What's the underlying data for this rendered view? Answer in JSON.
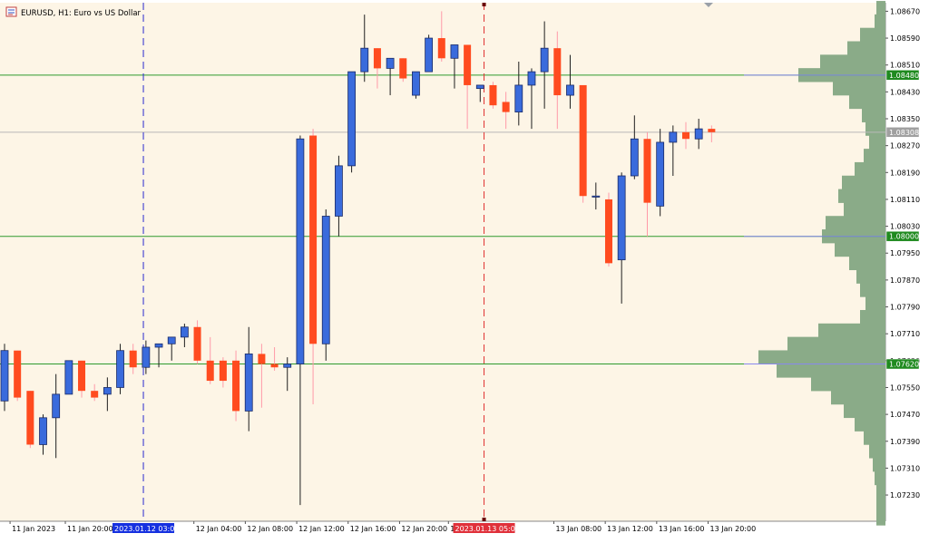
{
  "header": {
    "symbol": "EURUSD",
    "timeframe": "H1",
    "description": "Euro vs US Dollar",
    "title": "EURUSD, H1:  Euro vs US Dollar",
    "icon": "chart-window-icon"
  },
  "colors": {
    "background": "#fdf5e6",
    "bull_body": "#3a6bdc",
    "bear_body": "#ff4b1f",
    "wick_bull": "#1e1e1e",
    "wick_bear": "#ff9aa8",
    "volume_profile": "#8aab88",
    "level_line": "#2e9a2e",
    "current_price_line": "#b8b8b8",
    "vertical_blue": "#2b2bd0",
    "vertical_red": "#e03030",
    "label_green": "#1f8a1f",
    "label_gray": "#a0a0a0",
    "label_blue": "#1530e0",
    "label_red": "#e0303a"
  },
  "chart_data": {
    "type": "candlestick",
    "ylim": [
      1.0716,
      1.0869
    ],
    "price_ticks": [
      "1.08670",
      "1.08590",
      "1.08510",
      "1.08430",
      "1.08350",
      "1.08270",
      "1.08190",
      "1.08110",
      "1.08030",
      "1.07950",
      "1.07870",
      "1.07790",
      "1.07710",
      "1.07630",
      "1.07550",
      "1.07470",
      "1.07390",
      "1.07310",
      "1.07230"
    ],
    "price_tick_values": [
      1.0867,
      1.0859,
      1.0851,
      1.0843,
      1.0835,
      1.0827,
      1.0819,
      1.0811,
      1.0803,
      1.0795,
      1.0787,
      1.0779,
      1.0771,
      1.0763,
      1.0755,
      1.0747,
      1.0739,
      1.0731,
      1.0723
    ],
    "time_labels": [
      "11 Jan 2023",
      "11 Jan 20:00",
      "12 Jan 04:00",
      "12 Jan 08:00",
      "12 Jan 12:00",
      "12 Jan 16:00",
      "12 Jan 20:00",
      "13 Jan 00",
      "13 Jan 08:00",
      "13 Jan 12:00",
      "13 Jan 16:00",
      "13 Jan 20:00"
    ],
    "time_label_bars": [
      0.5,
      4.8,
      14.8,
      18.8,
      22.8,
      26.8,
      30.8,
      34.6,
      42.8,
      46.8,
      50.8,
      54.8
    ],
    "levels": [
      {
        "price": 1.0848,
        "label": "1.08480"
      },
      {
        "price": 1.08,
        "label": "1.08000"
      },
      {
        "price": 1.0762,
        "label": "1.07620"
      }
    ],
    "current_price": {
      "price": 1.0831,
      "label": "1.08308"
    },
    "vertical_markers": [
      {
        "bar": 10.8,
        "label": "2023.01.12 03:00",
        "style": "blue"
      },
      {
        "bar": 37.3,
        "label": "2023.01.13 05:00",
        "style": "red"
      }
    ],
    "candles": [
      {
        "o": 1.0751,
        "h": 1.0768,
        "l": 1.0748,
        "c": 1.0766
      },
      {
        "o": 1.0766,
        "h": 1.0766,
        "l": 1.0751,
        "c": 1.0752
      },
      {
        "o": 1.0754,
        "h": 1.0754,
        "l": 1.0737,
        "c": 1.0738
      },
      {
        "o": 1.0738,
        "h": 1.0747,
        "l": 1.0735,
        "c": 1.0746
      },
      {
        "o": 1.0746,
        "h": 1.0759,
        "l": 1.0734,
        "c": 1.0753
      },
      {
        "o": 1.0753,
        "h": 1.0763,
        "l": 1.0753,
        "c": 1.0763
      },
      {
        "o": 1.0763,
        "h": 1.0763,
        "l": 1.0752,
        "c": 1.0754
      },
      {
        "o": 1.0754,
        "h": 1.0756,
        "l": 1.0751,
        "c": 1.0752
      },
      {
        "o": 1.0753,
        "h": 1.0758,
        "l": 1.0748,
        "c": 1.0755
      },
      {
        "o": 1.0755,
        "h": 1.0768,
        "l": 1.0753,
        "c": 1.0766
      },
      {
        "o": 1.0766,
        "h": 1.0768,
        "l": 1.0759,
        "c": 1.0761
      },
      {
        "o": 1.0761,
        "h": 1.0769,
        "l": 1.0759,
        "c": 1.0767
      },
      {
        "o": 1.0767,
        "h": 1.0768,
        "l": 1.0761,
        "c": 1.0768
      },
      {
        "o": 1.0768,
        "h": 1.077,
        "l": 1.0763,
        "c": 1.077
      },
      {
        "o": 1.077,
        "h": 1.0774,
        "l": 1.0767,
        "c": 1.0773
      },
      {
        "o": 1.0773,
        "h": 1.0775,
        "l": 1.0762,
        "c": 1.0763
      },
      {
        "o": 1.0763,
        "h": 1.077,
        "l": 1.0756,
        "c": 1.0757
      },
      {
        "o": 1.0763,
        "h": 1.0764,
        "l": 1.0755,
        "c": 1.0757
      },
      {
        "o": 1.0763,
        "h": 1.0766,
        "l": 1.0745,
        "c": 1.0748
      },
      {
        "o": 1.0748,
        "h": 1.0773,
        "l": 1.0742,
        "c": 1.0765
      },
      {
        "o": 1.0765,
        "h": 1.0768,
        "l": 1.0749,
        "c": 1.0762
      },
      {
        "o": 1.0762,
        "h": 1.0767,
        "l": 1.076,
        "c": 1.0761
      },
      {
        "o": 1.0761,
        "h": 1.0764,
        "l": 1.0754,
        "c": 1.0762
      },
      {
        "o": 1.0762,
        "h": 1.083,
        "l": 1.072,
        "c": 1.0829
      },
      {
        "o": 1.083,
        "h": 1.0832,
        "l": 1.075,
        "c": 1.0768
      },
      {
        "o": 1.0768,
        "h": 1.0808,
        "l": 1.0763,
        "c": 1.0806
      },
      {
        "o": 1.0806,
        "h": 1.0824,
        "l": 1.08,
        "c": 1.0821
      },
      {
        "o": 1.0821,
        "h": 1.0849,
        "l": 1.0819,
        "c": 1.0849
      },
      {
        "o": 1.0849,
        "h": 1.0866,
        "l": 1.0846,
        "c": 1.0856
      },
      {
        "o": 1.0856,
        "h": 1.0856,
        "l": 1.0844,
        "c": 1.085
      },
      {
        "o": 1.085,
        "h": 1.0853,
        "l": 1.0842,
        "c": 1.0853
      },
      {
        "o": 1.0853,
        "h": 1.0853,
        "l": 1.0846,
        "c": 1.0847
      },
      {
        "o": 1.0842,
        "h": 1.0849,
        "l": 1.0841,
        "c": 1.0849
      },
      {
        "o": 1.0849,
        "h": 1.086,
        "l": 1.0849,
        "c": 1.0859
      },
      {
        "o": 1.0859,
        "h": 1.0867,
        "l": 1.0852,
        "c": 1.0853
      },
      {
        "o": 1.0853,
        "h": 1.0856,
        "l": 1.0844,
        "c": 1.0857
      },
      {
        "o": 1.0857,
        "h": 1.0857,
        "l": 1.0832,
        "c": 1.0845
      },
      {
        "o": 1.0844,
        "h": 1.0844,
        "l": 1.084,
        "c": 1.0845
      },
      {
        "o": 1.0845,
        "h": 1.0846,
        "l": 1.0838,
        "c": 1.0839
      },
      {
        "o": 1.084,
        "h": 1.0843,
        "l": 1.0832,
        "c": 1.0837
      },
      {
        "o": 1.0837,
        "h": 1.0852,
        "l": 1.0833,
        "c": 1.0845
      },
      {
        "o": 1.0845,
        "h": 1.085,
        "l": 1.0832,
        "c": 1.0849
      },
      {
        "o": 1.0849,
        "h": 1.0864,
        "l": 1.0838,
        "c": 1.0856
      },
      {
        "o": 1.0856,
        "h": 1.0861,
        "l": 1.0832,
        "c": 1.0842
      },
      {
        "o": 1.0842,
        "h": 1.0854,
        "l": 1.0838,
        "c": 1.0845
      },
      {
        "o": 1.0845,
        "h": 1.0845,
        "l": 1.081,
        "c": 1.0812
      },
      {
        "o": 1.0812,
        "h": 1.0816,
        "l": 1.0808,
        "c": 1.0812
      },
      {
        "o": 1.0811,
        "h": 1.0813,
        "l": 1.0791,
        "c": 1.0792
      },
      {
        "o": 1.0793,
        "h": 1.0819,
        "l": 1.078,
        "c": 1.0818
      },
      {
        "o": 1.0818,
        "h": 1.0836,
        "l": 1.0817,
        "c": 1.0829
      },
      {
        "o": 1.0829,
        "h": 1.0831,
        "l": 1.08,
        "c": 1.081
      },
      {
        "o": 1.0809,
        "h": 1.0832,
        "l": 1.0806,
        "c": 1.0828
      },
      {
        "o": 1.0828,
        "h": 1.0833,
        "l": 1.0818,
        "c": 1.0831
      },
      {
        "o": 1.0831,
        "h": 1.0834,
        "l": 1.0826,
        "c": 1.0829
      },
      {
        "o": 1.0829,
        "h": 1.0835,
        "l": 1.0826,
        "c": 1.0832
      },
      {
        "o": 1.0832,
        "h": 1.0833,
        "l": 1.0828,
        "c": 1.0831
      }
    ],
    "volume_profile_bins": [
      {
        "p": 1.0868,
        "w": 10
      },
      {
        "p": 1.0864,
        "w": 12
      },
      {
        "p": 1.086,
        "w": 28
      },
      {
        "p": 1.0856,
        "w": 42
      },
      {
        "p": 1.0852,
        "w": 72
      },
      {
        "p": 1.0848,
        "w": 96
      },
      {
        "p": 1.0844,
        "w": 58
      },
      {
        "p": 1.084,
        "w": 40
      },
      {
        "p": 1.0836,
        "w": 26
      },
      {
        "p": 1.0832,
        "w": 22
      },
      {
        "p": 1.0828,
        "w": 18
      },
      {
        "p": 1.0824,
        "w": 24
      },
      {
        "p": 1.082,
        "w": 34
      },
      {
        "p": 1.0816,
        "w": 48
      },
      {
        "p": 1.0812,
        "w": 52
      },
      {
        "p": 1.0808,
        "w": 46
      },
      {
        "p": 1.0804,
        "w": 66
      },
      {
        "p": 1.08,
        "w": 70
      },
      {
        "p": 1.0796,
        "w": 56
      },
      {
        "p": 1.0792,
        "w": 40
      },
      {
        "p": 1.0788,
        "w": 32
      },
      {
        "p": 1.0784,
        "w": 28
      },
      {
        "p": 1.078,
        "w": 22
      },
      {
        "p": 1.0776,
        "w": 28
      },
      {
        "p": 1.0772,
        "w": 74
      },
      {
        "p": 1.0768,
        "w": 108
      },
      {
        "p": 1.0764,
        "w": 140
      },
      {
        "p": 1.076,
        "w": 120
      },
      {
        "p": 1.0756,
        "w": 82
      },
      {
        "p": 1.0752,
        "w": 60
      },
      {
        "p": 1.0748,
        "w": 46
      },
      {
        "p": 1.0744,
        "w": 34
      },
      {
        "p": 1.074,
        "w": 24
      },
      {
        "p": 1.0736,
        "w": 18
      },
      {
        "p": 1.0732,
        "w": 14
      },
      {
        "p": 1.0728,
        "w": 12
      },
      {
        "p": 1.0724,
        "w": 10
      },
      {
        "p": 1.072,
        "w": 10
      },
      {
        "p": 1.0716,
        "w": 10
      }
    ]
  }
}
